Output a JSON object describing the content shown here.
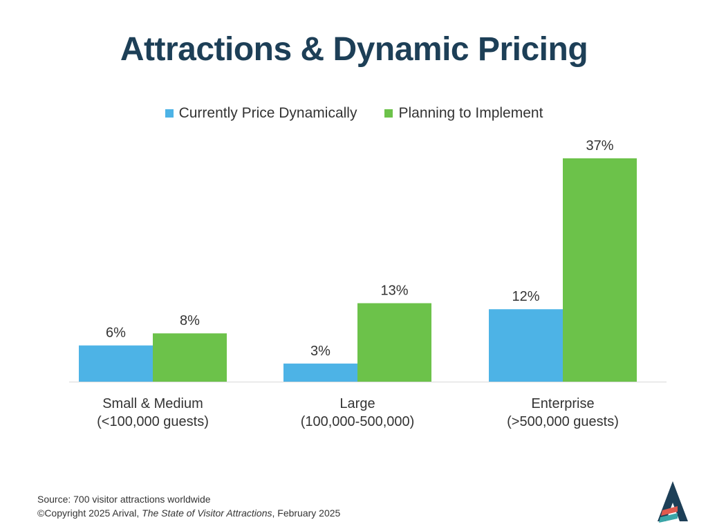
{
  "chart_data": {
    "type": "bar",
    "title": "Attractions & Dynamic Pricing",
    "categories": [
      [
        "Small & Medium",
        "(<100,000 guests)"
      ],
      [
        "Large",
        "(100,000-500,000)"
      ],
      [
        "Enterprise",
        "(>500,000 guests)"
      ]
    ],
    "series": [
      {
        "name": "Currently Price Dynamically",
        "color": "#4db3e6",
        "values": [
          6,
          3,
          12
        ],
        "labels": [
          "6%",
          "3%",
          "12%"
        ]
      },
      {
        "name": "Planning to Implement",
        "color": "#6cc24a",
        "values": [
          8,
          13,
          37
        ],
        "labels": [
          "8%",
          "13%",
          "37%"
        ]
      }
    ],
    "ylim": [
      0,
      37
    ],
    "xlabel": "",
    "ylabel": "",
    "grid": false,
    "legend": "top"
  },
  "footer": {
    "source": "Source: 700 visitor attractions worldwide",
    "copyright_prefix": "©Copyright 2025 Arival, ",
    "copyright_title": "The State of Visitor Attractions",
    "copyright_suffix": ", February 2025"
  },
  "logo": {
    "name": "Arival",
    "colors": [
      "#1d3f57",
      "#e05a4e",
      "#3aa6a8"
    ]
  }
}
